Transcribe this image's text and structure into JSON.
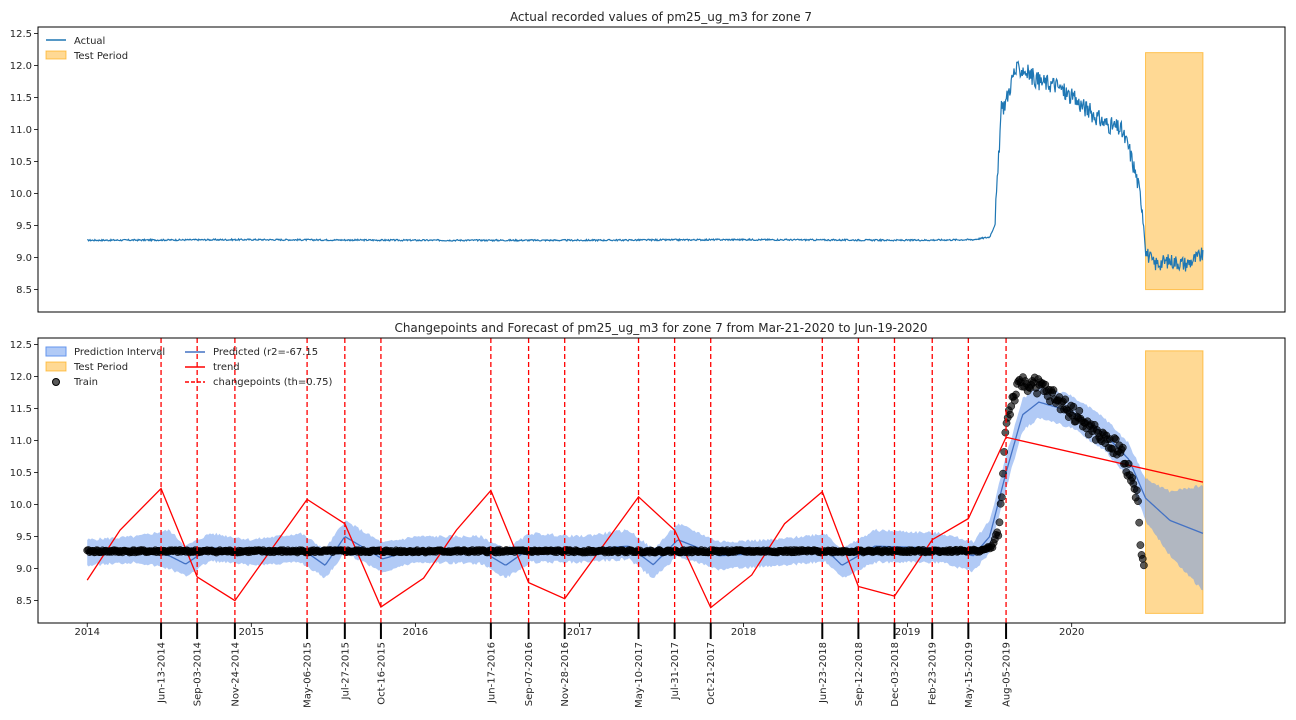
{
  "chart_data": [
    {
      "type": "line",
      "title": "Actual recorded values of pm25_ug_m3 for zone 7",
      "xlabel": "",
      "ylabel": "",
      "ylim": [
        8.15,
        12.6
      ],
      "yticks": [
        8.5,
        9.0,
        9.5,
        10.0,
        10.5,
        11.0,
        11.5,
        12.0,
        12.5
      ],
      "x_range_years": [
        2013.7,
        2021.3
      ],
      "legend": {
        "position": "top-left",
        "entries": [
          "Actual",
          "Test Period"
        ]
      },
      "series": [
        {
          "name": "Actual",
          "color": "#1f77b4",
          "points": [
            [
              2014.0,
              9.27
            ],
            [
              2015.0,
              9.28
            ],
            [
              2016.0,
              9.27
            ],
            [
              2017.0,
              9.27
            ],
            [
              2018.0,
              9.28
            ],
            [
              2019.0,
              9.27
            ],
            [
              2019.4,
              9.28
            ],
            [
              2019.5,
              9.32
            ],
            [
              2019.53,
              9.5
            ],
            [
              2019.55,
              10.3
            ],
            [
              2019.57,
              11.3
            ],
            [
              2019.6,
              11.45
            ],
            [
              2019.65,
              11.9
            ],
            [
              2019.7,
              11.95
            ],
            [
              2019.8,
              11.75
            ],
            [
              2019.9,
              11.7
            ],
            [
              2020.0,
              11.5
            ],
            [
              2020.1,
              11.3
            ],
            [
              2020.2,
              11.1
            ],
            [
              2020.3,
              11.0
            ],
            [
              2020.35,
              10.7
            ],
            [
              2020.4,
              10.2
            ],
            [
              2020.43,
              9.8
            ],
            [
              2020.45,
              9.1
            ],
            [
              2020.5,
              8.9
            ],
            [
              2020.6,
              8.95
            ],
            [
              2020.7,
              8.9
            ],
            [
              2020.8,
              9.05
            ]
          ]
        }
      ],
      "test_period": {
        "x": [
          2020.45,
          2020.8
        ],
        "y": [
          8.5,
          12.2
        ],
        "color": "#ffa500",
        "label": "Test Period"
      }
    },
    {
      "type": "line",
      "title": "Changepoints and Forecast of pm25_ug_m3 for zone 7 from Mar-21-2020 to Jun-19-2020",
      "xlabel": "",
      "ylabel": "",
      "ylim": [
        8.15,
        12.6
      ],
      "yticks": [
        8.5,
        9.0,
        9.5,
        10.0,
        10.5,
        11.0,
        11.5,
        12.0,
        12.5
      ],
      "x_range_years": [
        2013.7,
        2021.3
      ],
      "x_year_labels": [
        "2014",
        "2015",
        "2016",
        "2017",
        "2018",
        "2019",
        "2020"
      ],
      "legend": {
        "position": "top-left",
        "entries": [
          "Prediction Interval",
          "Test Period",
          "Train",
          "Predicted (r2=-67.15",
          "trend",
          "changepoints (th=0.75)"
        ]
      },
      "changepoints": [
        {
          "label": "Jun-13-2014",
          "x": 2014.45
        },
        {
          "label": "Sep-03-2014",
          "x": 2014.67
        },
        {
          "label": "Nov-24-2014",
          "x": 2014.9
        },
        {
          "label": "May-06-2015",
          "x": 2015.34
        },
        {
          "label": "Jul-27-2015",
          "x": 2015.57
        },
        {
          "label": "Oct-16-2015",
          "x": 2015.79
        },
        {
          "label": "Jun-17-2016",
          "x": 2016.46
        },
        {
          "label": "Sep-07-2016",
          "x": 2016.69
        },
        {
          "label": "Nov-28-2016",
          "x": 2016.91
        },
        {
          "label": "May-10-2017",
          "x": 2017.36
        },
        {
          "label": "Jul-31-2017",
          "x": 2017.58
        },
        {
          "label": "Oct-21-2017",
          "x": 2017.8
        },
        {
          "label": "Jun-23-2018",
          "x": 2018.48
        },
        {
          "label": "Sep-12-2018",
          "x": 2018.7
        },
        {
          "label": "Dec-03-2018",
          "x": 2018.92
        },
        {
          "label": "Feb-23-2019",
          "x": 2019.15
        },
        {
          "label": "May-15-2019",
          "x": 2019.37
        },
        {
          "label": "Aug-05-2019",
          "x": 2019.6
        }
      ],
      "trend": {
        "name": "trend",
        "color": "#ff0000",
        "points": [
          [
            2014.0,
            8.82
          ],
          [
            2014.2,
            9.6
          ],
          [
            2014.45,
            10.25
          ],
          [
            2014.67,
            8.87
          ],
          [
            2014.9,
            8.5
          ],
          [
            2015.34,
            10.08
          ],
          [
            2015.57,
            9.7
          ],
          [
            2015.79,
            8.4
          ],
          [
            2016.05,
            8.85
          ],
          [
            2016.25,
            9.6
          ],
          [
            2016.46,
            10.22
          ],
          [
            2016.69,
            8.78
          ],
          [
            2016.91,
            8.53
          ],
          [
            2017.36,
            10.12
          ],
          [
            2017.58,
            9.6
          ],
          [
            2017.8,
            8.39
          ],
          [
            2018.05,
            8.9
          ],
          [
            2018.25,
            9.7
          ],
          [
            2018.48,
            10.2
          ],
          [
            2018.7,
            8.72
          ],
          [
            2018.92,
            8.57
          ],
          [
            2019.15,
            9.45
          ],
          [
            2019.37,
            9.78
          ],
          [
            2019.6,
            11.05
          ],
          [
            2020.8,
            10.35
          ]
        ]
      },
      "predicted": {
        "name": "Predicted (r2=-67.15",
        "color": "#4472c4",
        "points": [
          [
            2014.0,
            9.25
          ],
          [
            2014.3,
            9.3
          ],
          [
            2014.5,
            9.2
          ],
          [
            2014.6,
            9.07
          ],
          [
            2014.75,
            9.33
          ],
          [
            2015.0,
            9.25
          ],
          [
            2015.3,
            9.32
          ],
          [
            2015.45,
            9.05
          ],
          [
            2015.57,
            9.5
          ],
          [
            2015.8,
            9.15
          ],
          [
            2016.0,
            9.3
          ],
          [
            2016.4,
            9.28
          ],
          [
            2016.55,
            9.05
          ],
          [
            2016.7,
            9.32
          ],
          [
            2017.0,
            9.3
          ],
          [
            2017.3,
            9.35
          ],
          [
            2017.45,
            9.06
          ],
          [
            2017.6,
            9.45
          ],
          [
            2017.85,
            9.2
          ],
          [
            2018.2,
            9.25
          ],
          [
            2018.5,
            9.3
          ],
          [
            2018.6,
            9.05
          ],
          [
            2018.8,
            9.35
          ],
          [
            2019.2,
            9.32
          ],
          [
            2019.4,
            9.2
          ],
          [
            2019.5,
            9.5
          ],
          [
            2019.6,
            10.5
          ],
          [
            2019.7,
            11.4
          ],
          [
            2019.8,
            11.6
          ],
          [
            2020.0,
            11.45
          ],
          [
            2020.2,
            11.1
          ],
          [
            2020.35,
            10.7
          ],
          [
            2020.45,
            10.1
          ],
          [
            2020.6,
            9.75
          ],
          [
            2020.8,
            9.55
          ]
        ]
      },
      "prediction_interval": {
        "name": "Prediction Interval",
        "color": "#6495ed",
        "points": [
          [
            2014.0,
            9.05,
            9.45
          ],
          [
            2014.3,
            9.1,
            9.5
          ],
          [
            2014.5,
            9.0,
            9.6
          ],
          [
            2014.6,
            8.88,
            9.35
          ],
          [
            2014.75,
            9.12,
            9.55
          ],
          [
            2015.0,
            9.05,
            9.45
          ],
          [
            2015.3,
            9.1,
            9.55
          ],
          [
            2015.45,
            8.85,
            9.3
          ],
          [
            2015.57,
            9.25,
            9.75
          ],
          [
            2015.8,
            8.95,
            9.4
          ],
          [
            2016.0,
            9.1,
            9.5
          ],
          [
            2016.4,
            9.08,
            9.5
          ],
          [
            2016.55,
            8.85,
            9.3
          ],
          [
            2016.7,
            9.1,
            9.55
          ],
          [
            2017.0,
            9.1,
            9.5
          ],
          [
            2017.3,
            9.15,
            9.6
          ],
          [
            2017.45,
            8.85,
            9.3
          ],
          [
            2017.6,
            9.2,
            9.7
          ],
          [
            2017.85,
            8.98,
            9.42
          ],
          [
            2018.2,
            9.05,
            9.45
          ],
          [
            2018.5,
            9.1,
            9.55
          ],
          [
            2018.6,
            8.85,
            9.3
          ],
          [
            2018.8,
            9.1,
            9.6
          ],
          [
            2019.2,
            9.1,
            9.55
          ],
          [
            2019.4,
            8.95,
            9.42
          ],
          [
            2019.5,
            9.25,
            9.75
          ],
          [
            2019.6,
            10.25,
            10.75
          ],
          [
            2019.7,
            11.15,
            11.65
          ],
          [
            2019.8,
            11.35,
            11.85
          ],
          [
            2020.0,
            11.2,
            11.7
          ],
          [
            2020.2,
            10.85,
            11.35
          ],
          [
            2020.35,
            10.4,
            10.95
          ],
          [
            2020.45,
            9.75,
            10.4
          ],
          [
            2020.6,
            9.2,
            10.2
          ],
          [
            2020.8,
            8.65,
            10.3
          ]
        ]
      },
      "train": {
        "name": "Train",
        "color": "#000000",
        "points": [
          [
            2014.0,
            9.27
          ],
          [
            2015.0,
            9.27
          ],
          [
            2016.0,
            9.27
          ],
          [
            2017.0,
            9.27
          ],
          [
            2018.0,
            9.27
          ],
          [
            2019.0,
            9.27
          ],
          [
            2019.45,
            9.28
          ],
          [
            2019.52,
            9.35
          ],
          [
            2019.56,
            9.7
          ],
          [
            2019.58,
            10.4
          ],
          [
            2019.6,
            11.3
          ],
          [
            2019.65,
            11.7
          ],
          [
            2019.7,
            11.9
          ],
          [
            2019.8,
            11.85
          ],
          [
            2019.9,
            11.65
          ],
          [
            2020.0,
            11.45
          ],
          [
            2020.1,
            11.2
          ],
          [
            2020.2,
            11.0
          ],
          [
            2020.3,
            10.85
          ],
          [
            2020.35,
            10.5
          ],
          [
            2020.4,
            10.1
          ],
          [
            2020.42,
            9.3
          ],
          [
            2020.44,
            9.05
          ]
        ]
      },
      "test_period": {
        "x": [
          2020.45,
          2020.8
        ],
        "y": [
          8.3,
          12.4
        ],
        "color": "#ffa500",
        "label": "Test Period"
      }
    }
  ]
}
